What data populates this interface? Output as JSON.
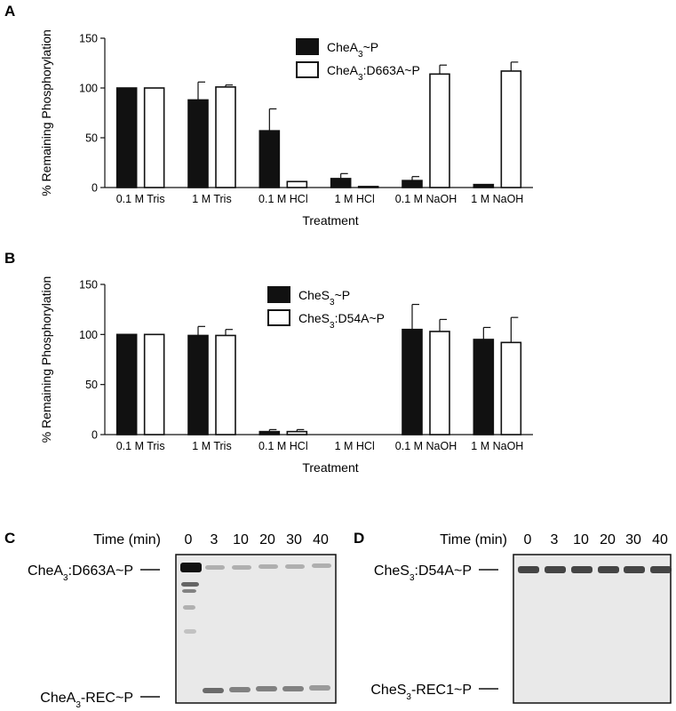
{
  "chart_data": [
    {
      "panel": "A",
      "type": "bar",
      "xlabel": "Treatment",
      "ylabel": "% Remaining Phosphorylation",
      "ylim": [
        0,
        150
      ],
      "yticks": [
        "0",
        "50",
        "100",
        "150"
      ],
      "categories": [
        "0.1 M Tris",
        "1 M Tris",
        "0.1 M HCl",
        "1 M HCl",
        "0.1 M NaOH",
        "1 M NaOH"
      ],
      "series": [
        {
          "name": "CheA3~P",
          "name_main": "CheA",
          "name_sub": "3",
          "name_rest": "~P",
          "fill": "#111111",
          "values": [
            100,
            88,
            57,
            9,
            7,
            3
          ],
          "errors": [
            0,
            18,
            22,
            5,
            4,
            0
          ]
        },
        {
          "name": "CheA3:D663A~P",
          "name_main": "CheA",
          "name_sub": "3",
          "name_rest": ":D663A~P",
          "fill": "#ffffff",
          "values": [
            100,
            101,
            6,
            1,
            114,
            117
          ],
          "errors": [
            0,
            2,
            0,
            0,
            9,
            9
          ]
        }
      ],
      "legend_position": "top-center",
      "grid": false
    },
    {
      "panel": "B",
      "type": "bar",
      "xlabel": "Treatment",
      "ylabel": "% Remaining Phosphorylation",
      "ylim": [
        0,
        150
      ],
      "yticks": [
        "0",
        "50",
        "100",
        "150"
      ],
      "categories": [
        "0.1 M Tris",
        "1 M Tris",
        "0.1 M HCl",
        "1 M HCl",
        "0.1 M NaOH",
        "1 M NaOH"
      ],
      "series": [
        {
          "name": "CheS3~P",
          "name_main": "CheS",
          "name_sub": "3",
          "name_rest": "~P",
          "fill": "#111111",
          "values": [
            100,
            99,
            3,
            0,
            105,
            95
          ],
          "errors": [
            0,
            9,
            2,
            0,
            25,
            12
          ]
        },
        {
          "name": "CheS3:D54A~P",
          "name_main": "CheS",
          "name_sub": "3",
          "name_rest": ":D54A~P",
          "fill": "#ffffff",
          "values": [
            100,
            99,
            3,
            0,
            103,
            92
          ],
          "errors": [
            0,
            6,
            2,
            0,
            12,
            25
          ]
        }
      ],
      "legend_position": "top-left",
      "grid": false
    }
  ],
  "gels": [
    {
      "panel": "C",
      "time_title": "Time (min)",
      "times": [
        "0",
        "3",
        "10",
        "20",
        "30",
        "40"
      ],
      "top_label": {
        "main": "CheA",
        "sub": "3",
        "rest": ":D663A~P"
      },
      "bottom_label": {
        "main": "CheA",
        "sub": "3",
        "rest": "-REC~P"
      }
    },
    {
      "panel": "D",
      "time_title": "Time (min)",
      "times": [
        "0",
        "3",
        "10",
        "20",
        "30",
        "40"
      ],
      "top_label": {
        "main": "CheS",
        "sub": "3",
        "rest": ":D54A~P"
      },
      "bottom_label": {
        "main": "CheS",
        "sub": "3",
        "rest": "-REC1~P"
      }
    }
  ]
}
